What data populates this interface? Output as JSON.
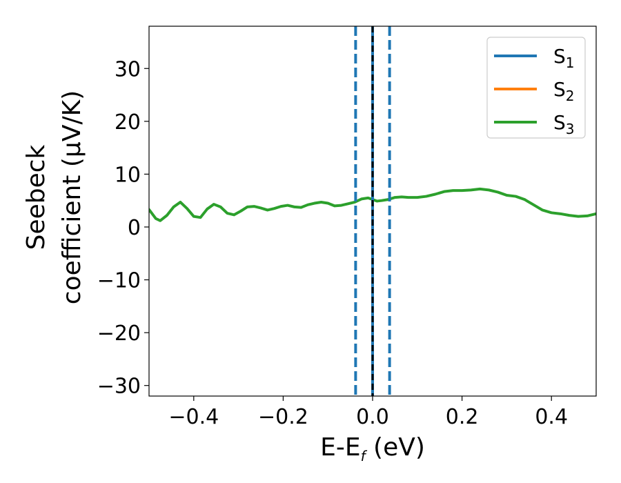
{
  "chart_data": {
    "type": "line",
    "xlabel": {
      "main": "E-E",
      "sub": "f",
      "suffix": " (eV)"
    },
    "ylabel_lines": [
      "Seebeck",
      "coefficient  (μV/K)"
    ],
    "xlim": [
      -0.5,
      0.5
    ],
    "ylim": [
      -32,
      38
    ],
    "xticks": [
      -0.4,
      -0.2,
      0.0,
      0.2,
      0.4
    ],
    "xtick_labels": [
      "−0.4",
      "−0.2",
      "0.0",
      "0.2",
      "0.4"
    ],
    "yticks": [
      -30,
      -20,
      -10,
      0,
      10,
      20,
      30
    ],
    "ytick_labels": [
      "−30",
      "−20",
      "−10",
      "0",
      "10",
      "20",
      "30"
    ],
    "grid": false,
    "legend": {
      "placement": "top-right"
    },
    "series": [
      {
        "name": "S",
        "sub": "1",
        "color": "#1f77b4",
        "x": [],
        "y": []
      },
      {
        "name": "S",
        "sub": "2",
        "color": "#ff7f0e",
        "x": [],
        "y": []
      },
      {
        "name": "S",
        "sub": "3",
        "color": "#2ca02c",
        "x": [
          -0.5,
          -0.485,
          -0.475,
          -0.46,
          -0.445,
          -0.43,
          -0.415,
          -0.4,
          -0.385,
          -0.37,
          -0.355,
          -0.34,
          -0.325,
          -0.31,
          -0.295,
          -0.28,
          -0.265,
          -0.25,
          -0.235,
          -0.22,
          -0.205,
          -0.19,
          -0.175,
          -0.16,
          -0.145,
          -0.13,
          -0.115,
          -0.1,
          -0.085,
          -0.07,
          -0.055,
          -0.04,
          -0.025,
          -0.01,
          0.0,
          0.01,
          0.02,
          0.035,
          0.05,
          0.065,
          0.08,
          0.1,
          0.12,
          0.14,
          0.16,
          0.18,
          0.2,
          0.22,
          0.24,
          0.26,
          0.28,
          0.3,
          0.32,
          0.34,
          0.36,
          0.38,
          0.4,
          0.42,
          0.44,
          0.46,
          0.48,
          0.5
        ],
        "y": [
          3.3,
          1.6,
          1.2,
          2.2,
          3.8,
          4.7,
          3.5,
          2.0,
          1.8,
          3.4,
          4.3,
          3.8,
          2.6,
          2.3,
          3.0,
          3.8,
          3.9,
          3.6,
          3.2,
          3.5,
          3.9,
          4.1,
          3.8,
          3.7,
          4.2,
          4.5,
          4.7,
          4.5,
          4.0,
          4.1,
          4.4,
          4.7,
          5.3,
          5.5,
          5.2,
          4.9,
          5.0,
          5.2,
          5.6,
          5.7,
          5.6,
          5.6,
          5.8,
          6.2,
          6.7,
          6.9,
          6.9,
          7.0,
          7.2,
          7.0,
          6.6,
          6.0,
          5.8,
          5.2,
          4.2,
          3.2,
          2.7,
          2.5,
          2.2,
          2.0,
          2.1,
          2.5
        ]
      }
    ],
    "vlines": [
      {
        "x": -0.038,
        "style": "dashed",
        "color": "#1f77b4"
      },
      {
        "x": 0.038,
        "style": "dashed",
        "color": "#1f77b4"
      },
      {
        "x": 0.0,
        "style": "solid",
        "color": "#1f77b4"
      },
      {
        "x": 0.0,
        "style": "dashed",
        "color": "#000000"
      }
    ]
  }
}
